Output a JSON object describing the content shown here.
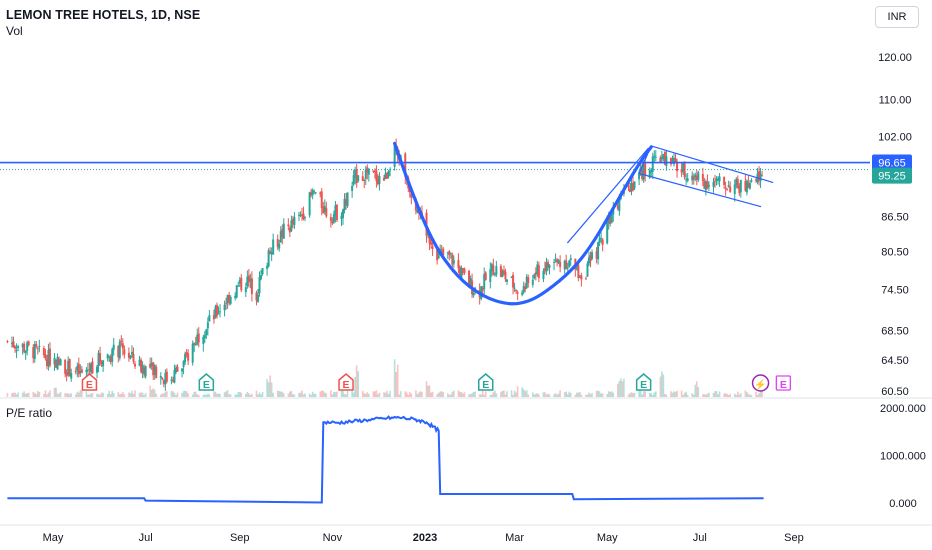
{
  "header": {
    "symbol_line": "LEMON TREE HOTELS, 1D, NSE",
    "volume_label": "Vol",
    "currency_button": "INR"
  },
  "indicator_panel": {
    "title": "P/E ratio"
  },
  "colors": {
    "up_candle": "#26a69a",
    "down_candle": "#ef5350",
    "overlay_line": "#2962ff",
    "pe_line": "#2962ff",
    "last_price_line": "#26a69a",
    "earnings_red": "#ef5350",
    "earnings_green": "#26a69a",
    "future_event": "#e040fb",
    "split_event": "#9c27b0"
  },
  "chart_data": [
    {
      "type": "candlestick",
      "title": "LEMON TREE HOTELS, 1D, NSE",
      "price_axis": {
        "ticks": [
          120.0,
          110.0,
          102.0,
          86.5,
          80.5,
          74.5,
          68.5,
          64.5,
          60.5
        ],
        "tick_labels": [
          "120.00",
          "110.00",
          "102.00",
          "86.50",
          "80.50",
          "74.50",
          "68.50",
          "64.50",
          "60.50"
        ],
        "scale": "log",
        "range": [
          59.5,
          131
        ]
      },
      "time_axis": {
        "labels": [
          "May",
          "Jul",
          "Sep",
          "Nov",
          "2023",
          "Mar",
          "May",
          "Jul",
          "Sep"
        ],
        "range": [
          "2022-04-01",
          "2023-09-30"
        ]
      },
      "resistance_line": {
        "price": 96.65,
        "label": "96.65"
      },
      "last_price": {
        "price": 95.25,
        "label": "95.25"
      },
      "close_path": [
        [
          "2022-04-01",
          67.0
        ],
        [
          "2022-04-20",
          65.5
        ],
        [
          "2022-05-05",
          64.0
        ],
        [
          "2022-05-20",
          62.5
        ],
        [
          "2022-05-31",
          64.5
        ],
        [
          "2022-06-15",
          66.0
        ],
        [
          "2022-06-25",
          64.0
        ],
        [
          "2022-07-05",
          63.0
        ],
        [
          "2022-07-15",
          62.0
        ],
        [
          "2022-07-25",
          63.5
        ],
        [
          "2022-08-05",
          68.0
        ],
        [
          "2022-08-15",
          70.5
        ],
        [
          "2022-08-25",
          73.5
        ],
        [
          "2022-09-05",
          76.0
        ],
        [
          "2022-09-12",
          74.0
        ],
        [
          "2022-09-20",
          80.0
        ],
        [
          "2022-09-30",
          84.0
        ],
        [
          "2022-10-10",
          86.0
        ],
        [
          "2022-10-20",
          91.0
        ],
        [
          "2022-10-30",
          86.5
        ],
        [
          "2022-11-08",
          88.0
        ],
        [
          "2022-11-18",
          95.0
        ],
        [
          "2022-11-28",
          94.0
        ],
        [
          "2022-12-06",
          93.5
        ],
        [
          "2022-12-12",
          100.5
        ],
        [
          "2022-12-15",
          98.0
        ],
        [
          "2022-12-22",
          92.0
        ],
        [
          "2023-01-02",
          84.0
        ],
        [
          "2023-01-10",
          80.0
        ],
        [
          "2023-01-18",
          79.5
        ],
        [
          "2023-01-28",
          76.0
        ],
        [
          "2023-02-05",
          74.0
        ],
        [
          "2023-02-15",
          78.0
        ],
        [
          "2023-02-25",
          76.0
        ],
        [
          "2023-03-05",
          74.0
        ],
        [
          "2023-03-15",
          77.0
        ],
        [
          "2023-03-25",
          78.5
        ],
        [
          "2023-04-05",
          79.0
        ],
        [
          "2023-04-15",
          76.5
        ],
        [
          "2023-04-25",
          81.0
        ],
        [
          "2023-05-05",
          88.0
        ],
        [
          "2023-05-15",
          92.0
        ],
        [
          "2023-05-25",
          95.0
        ],
        [
          "2023-06-05",
          97.5
        ],
        [
          "2023-06-15",
          96.0
        ],
        [
          "2023-06-25",
          94.0
        ],
        [
          "2023-07-05",
          93.0
        ],
        [
          "2023-07-15",
          92.5
        ],
        [
          "2023-07-25",
          92.0
        ],
        [
          "2023-08-05",
          92.0
        ],
        [
          "2023-08-12",
          95.25
        ]
      ],
      "volume_spikes": [
        [
          "2022-05-01",
          0.25
        ],
        [
          "2022-07-05",
          0.3
        ],
        [
          "2022-09-20",
          0.55
        ],
        [
          "2022-11-18",
          0.8
        ],
        [
          "2022-12-12",
          0.95
        ],
        [
          "2023-01-02",
          0.45
        ],
        [
          "2023-03-05",
          0.3
        ],
        [
          "2023-05-10",
          0.5
        ],
        [
          "2023-06-05",
          0.75
        ],
        [
          "2023-06-30",
          0.4
        ],
        [
          "2023-08-12",
          0.55
        ]
      ],
      "events": [
        {
          "date": "2022-05-25",
          "label": "E",
          "kind": "earnings",
          "result": "miss"
        },
        {
          "date": "2022-08-10",
          "label": "E",
          "kind": "earnings",
          "result": "beat"
        },
        {
          "date": "2022-11-10",
          "label": "E",
          "kind": "earnings",
          "result": "miss"
        },
        {
          "date": "2023-02-10",
          "label": "E",
          "kind": "earnings",
          "result": "beat"
        },
        {
          "date": "2023-05-25",
          "label": "E",
          "kind": "earnings",
          "result": "beat"
        },
        {
          "date": "2023-08-10",
          "label": "⚡",
          "kind": "split"
        },
        {
          "date": "2023-08-25",
          "label": "E",
          "kind": "upcoming"
        }
      ],
      "annotations": {
        "cup_curve": [
          [
            "2022-12-12",
            100.5
          ],
          [
            "2022-12-22",
            92.0
          ],
          [
            "2023-01-06",
            82.0
          ],
          [
            "2023-01-22",
            76.5
          ],
          [
            "2023-02-08",
            73.4
          ],
          [
            "2023-02-25",
            72.2
          ],
          [
            "2023-03-10",
            72.6
          ],
          [
            "2023-03-22",
            74.2
          ],
          [
            "2023-04-08",
            77.5
          ],
          [
            "2023-04-22",
            82.0
          ],
          [
            "2023-05-08",
            89.5
          ],
          [
            "2023-05-22",
            96.5
          ],
          [
            "2023-05-30",
            99.8
          ]
        ],
        "channel_upper": [
          [
            "2023-05-30",
            100.0
          ],
          [
            "2023-08-18",
            92.8
          ]
        ],
        "channel_lower": [
          [
            "2023-05-22",
            94.5
          ],
          [
            "2023-08-10",
            88.3
          ]
        ],
        "channel_left": [
          [
            "2023-05-22",
            94.5
          ],
          [
            "2023-05-30",
            100.0
          ]
        ],
        "rising_line": [
          [
            "2023-04-05",
            82.0
          ],
          [
            "2023-05-28",
            99.5
          ]
        ]
      }
    },
    {
      "type": "line",
      "title": "P/E ratio",
      "y_ticks": [
        2000.0,
        1000.0,
        0.0
      ],
      "y_tick_labels": [
        "2000.000",
        "1000.000",
        "0.000"
      ],
      "ylim": [
        -250,
        2200
      ],
      "x": [
        "2022-04-01",
        "2022-06-30",
        "2022-07-01",
        "2022-10-25",
        "2022-10-26",
        "2022-11-05",
        "2022-11-15",
        "2022-11-25",
        "2022-12-05",
        "2022-12-15",
        "2022-12-25",
        "2023-01-02",
        "2023-01-10",
        "2023-01-11",
        "2023-04-08",
        "2023-04-09",
        "2023-08-12"
      ],
      "values": [
        100,
        100,
        50,
        10,
        1700,
        1690,
        1720,
        1750,
        1780,
        1800,
        1760,
        1700,
        1520,
        190,
        190,
        80,
        100
      ]
    }
  ]
}
